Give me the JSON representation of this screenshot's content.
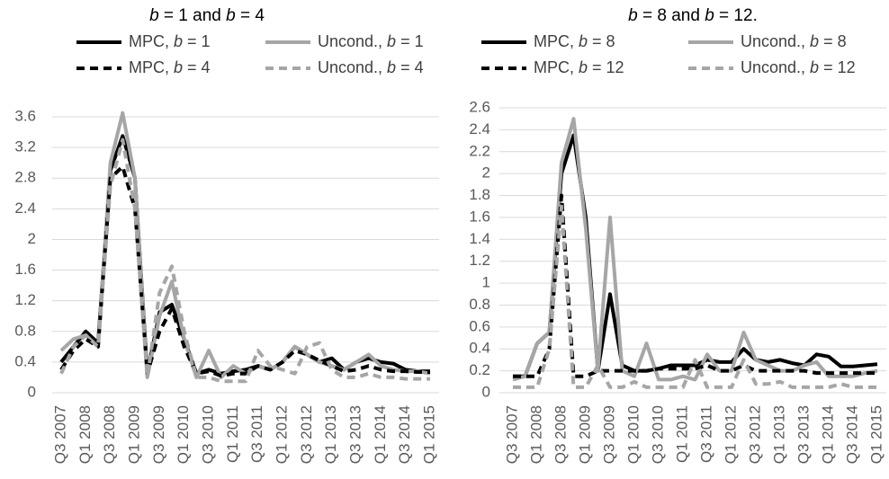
{
  "chart_data": [
    {
      "type": "line",
      "title": "b = 1 and b = 4",
      "categories": [
        "Q3 2007",
        null,
        "Q1 2008",
        null,
        "Q3 2008",
        null,
        "Q1 2009",
        null,
        "Q3 2009",
        null,
        "Q1 2010",
        null,
        "Q3 2010",
        null,
        "Q1 2011",
        null,
        "Q3 2011",
        null,
        "Q1 2012",
        null,
        "Q3 2012",
        null,
        "Q1 2013",
        null,
        "Q3 2013",
        null,
        "Q1 2014",
        null,
        "Q3 2014",
        null,
        "Q1 2015"
      ],
      "ylim": [
        0,
        3.6
      ],
      "yticks": [
        0,
        0.4,
        0.8,
        1.2,
        1.6,
        2,
        2.4,
        2.8,
        3.2,
        3.6
      ],
      "grid": true,
      "series": [
        {
          "name": "MPC, b = 1",
          "color": "#000000",
          "dash": false,
          "values": [
            0.4,
            0.6,
            0.8,
            0.65,
            2.9,
            3.35,
            2.8,
            0.25,
            1.05,
            1.15,
            0.7,
            0.25,
            0.3,
            0.25,
            0.28,
            0.3,
            0.35,
            0.3,
            0.4,
            0.6,
            0.5,
            0.4,
            0.45,
            0.3,
            0.4,
            0.45,
            0.4,
            0.38,
            0.3,
            0.28,
            0.28
          ]
        },
        {
          "name": "Uncond., b = 1",
          "color": "#a6a6a6",
          "dash": false,
          "values": [
            0.55,
            0.7,
            0.75,
            0.6,
            3.0,
            3.65,
            2.8,
            0.2,
            1.0,
            1.45,
            0.7,
            0.2,
            0.55,
            0.2,
            0.35,
            0.25,
            0.35,
            0.3,
            0.4,
            0.6,
            0.5,
            0.4,
            0.35,
            0.3,
            0.4,
            0.5,
            0.35,
            0.3,
            0.28,
            0.28,
            0.25
          ]
        },
        {
          "name": "MPC, b = 4",
          "color": "#000000",
          "dash": true,
          "values": [
            0.3,
            0.55,
            0.7,
            0.6,
            2.8,
            2.95,
            2.4,
            0.25,
            0.8,
            1.1,
            0.6,
            0.25,
            0.28,
            0.22,
            0.25,
            0.25,
            0.35,
            0.3,
            0.4,
            0.55,
            0.5,
            0.42,
            0.35,
            0.28,
            0.3,
            0.35,
            0.3,
            0.28,
            0.28,
            0.27,
            0.27
          ]
        },
        {
          "name": "Uncond., b = 4",
          "color": "#a6a6a6",
          "dash": true,
          "values": [
            0.25,
            0.6,
            0.75,
            0.6,
            2.7,
            3.3,
            2.4,
            0.2,
            1.3,
            1.65,
            0.8,
            0.2,
            0.2,
            0.15,
            0.15,
            0.15,
            0.55,
            0.35,
            0.3,
            0.25,
            0.6,
            0.65,
            0.3,
            0.2,
            0.2,
            0.25,
            0.2,
            0.2,
            0.18,
            0.18,
            0.18
          ]
        }
      ]
    },
    {
      "type": "line",
      "title": "b = 8 and b = 12.",
      "categories": [
        "Q3 2007",
        null,
        "Q1 2008",
        null,
        "Q3 2008",
        null,
        "Q1 2009",
        null,
        "Q3 2009",
        null,
        "Q1 2010",
        null,
        "Q3 2010",
        null,
        "Q1 2011",
        null,
        "Q3 2011",
        null,
        "Q1 2012",
        null,
        "Q3 2012",
        null,
        "Q1 2013",
        null,
        "Q3 2013",
        null,
        "Q1 2014",
        null,
        "Q3 2014",
        null,
        "Q1 2015"
      ],
      "ylim": [
        0,
        2.6
      ],
      "yticks": [
        0,
        0.2,
        0.4,
        0.6,
        0.8,
        1,
        1.2,
        1.4,
        1.6,
        1.8,
        2,
        2.2,
        2.4,
        2.6
      ],
      "grid": true,
      "series": [
        {
          "name": "MPC, b = 8",
          "color": "#000000",
          "dash": false,
          "values": [
            0.15,
            0.15,
            0.45,
            0.55,
            2.0,
            2.35,
            1.6,
            0.2,
            0.9,
            0.25,
            0.2,
            0.2,
            0.22,
            0.25,
            0.25,
            0.25,
            0.3,
            0.28,
            0.28,
            0.4,
            0.3,
            0.28,
            0.3,
            0.27,
            0.25,
            0.35,
            0.33,
            0.24,
            0.24,
            0.25,
            0.26
          ]
        },
        {
          "name": "Uncond., b = 8",
          "color": "#a6a6a6",
          "dash": false,
          "values": [
            0.12,
            0.15,
            0.45,
            0.55,
            2.1,
            2.5,
            1.5,
            0.2,
            1.6,
            0.2,
            0.15,
            0.45,
            0.12,
            0.12,
            0.15,
            0.12,
            0.35,
            0.2,
            0.2,
            0.55,
            0.3,
            0.25,
            0.2,
            0.2,
            0.25,
            0.28,
            0.15,
            0.15,
            0.15,
            0.18,
            0.2
          ]
        },
        {
          "name": "MPC, b = 12",
          "color": "#000000",
          "dash": true,
          "values": [
            0.15,
            0.15,
            0.15,
            0.4,
            1.8,
            0.15,
            0.15,
            0.2,
            0.2,
            0.2,
            0.2,
            0.2,
            0.22,
            0.22,
            0.22,
            0.22,
            0.25,
            0.2,
            0.2,
            0.25,
            0.2,
            0.2,
            0.2,
            0.2,
            0.2,
            0.18,
            0.18,
            0.18,
            0.18,
            0.18,
            0.18
          ]
        },
        {
          "name": "Uncond., b = 12",
          "color": "#a6a6a6",
          "dash": true,
          "values": [
            0.05,
            0.05,
            0.05,
            0.4,
            1.7,
            0.05,
            0.05,
            0.25,
            0.05,
            0.05,
            0.1,
            0.05,
            0.05,
            0.05,
            0.05,
            0.3,
            0.05,
            0.05,
            0.05,
            0.3,
            0.08,
            0.08,
            0.1,
            0.05,
            0.05,
            0.05,
            0.05,
            0.08,
            0.05,
            0.05,
            0.05
          ]
        }
      ]
    }
  ]
}
